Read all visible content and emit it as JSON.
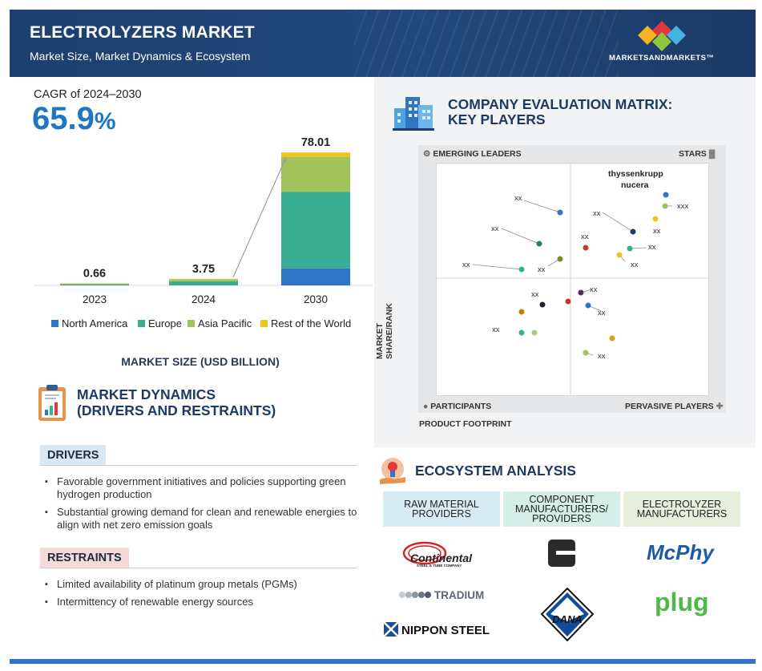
{
  "header": {
    "title": "ELECTROLYZERS MARKET",
    "subtitle": "Market Size, Market Dynamics & Ecosystem",
    "brand": "MARKETSANDMARKETS™"
  },
  "cagr": {
    "label": "CAGR of 2024–2030",
    "value": "65.9",
    "unit": "%"
  },
  "chart_data": {
    "type": "bar",
    "stacked": true,
    "categories": [
      "2023",
      "2024",
      "2030"
    ],
    "totals": [
      "0.66",
      "3.75",
      "78.01"
    ],
    "series": [
      {
        "name": "North America",
        "color": "#2f75c4",
        "values": [
          0.05,
          0.3,
          10.0
        ]
      },
      {
        "name": "Europe",
        "color": "#3aae93",
        "values": [
          0.38,
          2.1,
          45.0
        ]
      },
      {
        "name": "Asia Pacific",
        "color": "#a3c35a",
        "values": [
          0.2,
          1.2,
          20.5
        ]
      },
      {
        "name": "Rest of the World",
        "color": "#f3c51c",
        "values": [
          0.03,
          0.15,
          2.51
        ]
      }
    ],
    "title": "MARKET SIZE (USD BILLION)",
    "ylim": [
      0,
      80
    ],
    "grid": false,
    "legend": "bottom"
  },
  "market_dynamics": {
    "title_line1": "MARKET DYNAMICS",
    "title_line2": "(DRIVERS AND RESTRAINTS)",
    "drivers_label": "DRIVERS",
    "drivers": [
      "Favorable government initiatives and policies supporting green hydrogen production",
      "Substantial growing demand for clean and renewable energies to align with net zero emission goals"
    ],
    "restraints_label": "RESTRAINTS",
    "restraints": [
      "Limited availability of platinum group metals (PGMs)",
      "Intermittency of renewable energy sources"
    ]
  },
  "evaluation_matrix": {
    "title_line1": "COMPANY EVALUATION MATRIX:",
    "title_line2": "KEY PLAYERS",
    "quadrants": {
      "top_left": "EMERGING LEADERS",
      "top_right": "STARS",
      "bottom_left": "PARTICIPANTS",
      "bottom_right": "PERVASIVE PLAYERS"
    },
    "y_axis": "MARKET SHARE/RANK",
    "x_axis": "PRODUCT FOOTPRINT",
    "highlight_line1": "thyssenkrupp",
    "highlight_line2": "nucera",
    "placeholder": "xx",
    "placeholder_long": "xxx"
  },
  "ecosystem": {
    "title": "ECOSYSTEM ANALYSIS",
    "columns": [
      {
        "label_line1": "RAW MATERIAL",
        "label_line2": "PROVIDERS",
        "label_line3": "",
        "color": "#d8ecf5"
      },
      {
        "label_line1": "COMPONENT",
        "label_line2": "MANUFACTURERS/",
        "label_line3": "PROVIDERS",
        "color": "#d5efe8"
      },
      {
        "label_line1": "ELECTROLYZER",
        "label_line2": "MANUFACTURERS",
        "label_line3": "",
        "color": "#e6efd9"
      }
    ],
    "logos": {
      "continental": "Continental",
      "continental_sub": "STEEL & TUBE COMPANY",
      "tradium": "TRADIUM",
      "nippon": "NIPPON STEEL",
      "dana": "DANA",
      "mcphy": "McPhy",
      "plug": "plug"
    }
  }
}
